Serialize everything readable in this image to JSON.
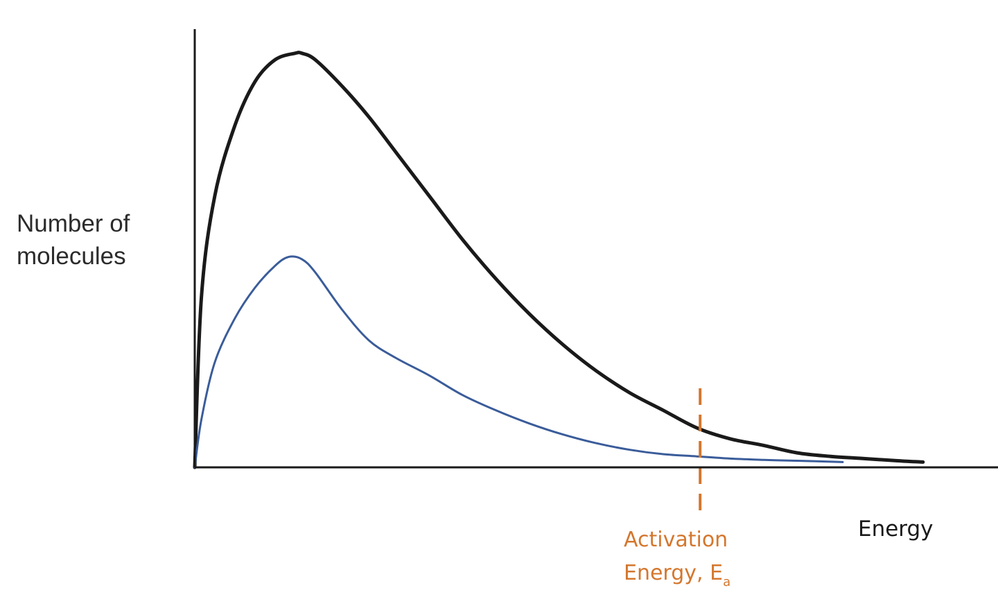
{
  "colors": {
    "axis": "#1a1a1a",
    "activation": "#d4772e"
  },
  "chart_data": {
    "type": "line",
    "xlabel": "Energy",
    "ylabel_lines": [
      "Number of",
      "molecules"
    ],
    "xlim": [
      0,
      12
    ],
    "ylim": [
      0,
      10
    ],
    "grid": false,
    "legend": "none",
    "series": [
      {
        "color": "#1a1a1a",
        "x": [
          0,
          0.1,
          0.3,
          0.6,
          0.9,
          1.2,
          1.5,
          1.6,
          1.8,
          2.2,
          2.6,
          3.0,
          3.5,
          4.0,
          4.5,
          5.0,
          5.5,
          6.0,
          6.5,
          7.0,
          7.5,
          8.0,
          8.5,
          9.0,
          9.5,
          10.0,
          10.5,
          10.88
        ],
        "y": [
          0,
          3.9,
          6.2,
          7.8,
          8.8,
          9.3,
          9.45,
          9.45,
          9.3,
          8.7,
          8.0,
          7.2,
          6.2,
          5.2,
          4.3,
          3.5,
          2.8,
          2.2,
          1.7,
          1.3,
          0.9,
          0.65,
          0.5,
          0.33,
          0.25,
          0.2,
          0.15,
          0.12
        ]
      },
      {
        "color": "#3a5c9a",
        "x": [
          0,
          0.1,
          0.3,
          0.6,
          0.9,
          1.2,
          1.4,
          1.6,
          1.8,
          2.2,
          2.6,
          3.0,
          3.5,
          4.0,
          4.5,
          5.0,
          5.5,
          6.0,
          6.5,
          7.0,
          7.5,
          8.0,
          8.5,
          9.0,
          9.68
        ],
        "y": [
          0,
          1.1,
          2.4,
          3.4,
          4.1,
          4.6,
          4.8,
          4.75,
          4.45,
          3.6,
          2.9,
          2.5,
          2.1,
          1.65,
          1.3,
          1.0,
          0.75,
          0.55,
          0.4,
          0.3,
          0.25,
          0.2,
          0.17,
          0.15,
          0.12
        ]
      }
    ],
    "annotations": [
      {
        "type": "vline",
        "x": 7.55,
        "style": "dashed",
        "color": "#d4772e",
        "label_lines": [
          "Activation",
          "Energy, E"
        ],
        "label_subscript": "a"
      }
    ]
  }
}
